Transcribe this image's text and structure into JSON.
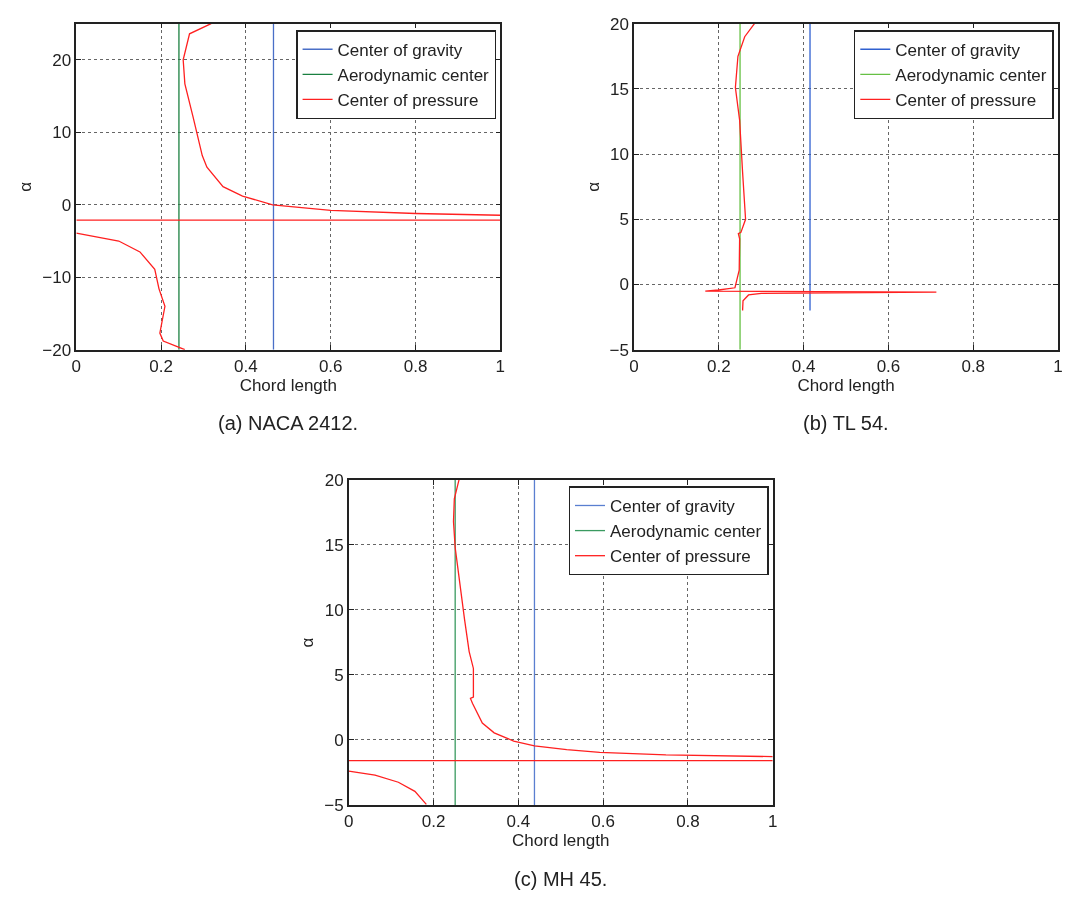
{
  "chart_data": [
    {
      "type": "line",
      "title": "(a) NACA 2412.",
      "xlabel": "Chord length",
      "ylabel": "α",
      "xlim": [
        0,
        1
      ],
      "ylim": [
        -20,
        25
      ],
      "xticks": [
        0,
        0.2,
        0.4,
        0.6,
        0.8,
        1
      ],
      "yticks": [
        -20,
        -10,
        0,
        10,
        20
      ],
      "grid": true,
      "legend": "top right",
      "series": [
        {
          "name": "Center of gravity",
          "color": "#4a6fc7",
          "x": [
            0.465,
            0.465
          ],
          "values": [
            -20,
            25
          ]
        },
        {
          "name": "Aerodynamic center",
          "color": "#1a8040",
          "x": [
            0.242,
            0.242
          ],
          "values": [
            -20,
            25
          ]
        },
        {
          "name": "Center of pressure",
          "color": "#ff2020",
          "x": [
            0.318,
            0.267,
            0.252,
            0.256,
            0.275,
            0.297,
            0.308,
            0.346,
            0.392,
            0.463,
            0.6,
            0.8,
            1,
            null,
            1,
            0,
            null,
            0,
            0.1,
            0.15,
            0.185,
            0.195,
            0.209,
            0.197,
            0.205,
            0.256
          ],
          "values": [
            25,
            23.6,
            20,
            16.7,
            12.2,
            6.8,
            5.2,
            2.5,
            1.2,
            0,
            -0.76,
            -1.2,
            -1.44,
            null,
            -2.1,
            -2.1,
            null,
            -3.9,
            -5.0,
            -6.5,
            -8.9,
            -11.6,
            -14,
            -17.7,
            -18.8,
            -20
          ]
        }
      ]
    },
    {
      "type": "line",
      "title": "(b) TL 54.",
      "xlabel": "Chord length",
      "ylabel": "α",
      "xlim": [
        0,
        1
      ],
      "ylim": [
        -5,
        20
      ],
      "xticks": [
        0,
        0.2,
        0.4,
        0.6,
        0.8,
        1
      ],
      "yticks": [
        -5,
        0,
        5,
        10,
        15,
        20
      ],
      "grid": true,
      "legend": "top right",
      "series": [
        {
          "name": "Center of gravity",
          "color": "#3060d0",
          "x": [
            0.415,
            0.415
          ],
          "values": [
            -2,
            20
          ]
        },
        {
          "name": "Aerodynamic center",
          "color": "#66c044",
          "x": [
            0.25,
            0.25
          ],
          "values": [
            -5,
            20
          ]
        },
        {
          "name": "Center of pressure",
          "color": "#ff2020",
          "x": [
            0.284,
            0.261,
            0.245,
            0.239,
            0.249,
            0.256,
            0.263,
            0.252,
            0.246,
            0.249,
            0.248,
            0.238,
            0.199,
            0.168,
            0.713,
            0.3,
            0.27,
            0.257,
            0.256
          ],
          "values": [
            20,
            19,
            17.5,
            15.1,
            12.6,
            8.6,
            5,
            4,
            3.9,
            3.5,
            1.1,
            -0.25,
            -0.42,
            -0.5,
            -0.58,
            -0.68,
            -0.8,
            -1.25,
            -2
          ]
        }
      ]
    },
    {
      "type": "line",
      "title": "(c) MH 45.",
      "xlabel": "Chord length",
      "ylabel": "α",
      "xlim": [
        0,
        1
      ],
      "ylim": [
        -5,
        20
      ],
      "xticks": [
        0,
        0.2,
        0.4,
        0.6,
        0.8,
        1
      ],
      "yticks": [
        -5,
        0,
        5,
        10,
        15,
        20
      ],
      "grid": true,
      "legend": "top right",
      "series": [
        {
          "name": "Center of gravity",
          "color": "#5a7fd0",
          "x": [
            0.438,
            0.438
          ],
          "values": [
            -5,
            20
          ]
        },
        {
          "name": "Aerodynamic center",
          "color": "#3a9a60",
          "x": [
            0.251,
            0.251
          ],
          "values": [
            -5,
            20
          ]
        },
        {
          "name": "Center of pressure",
          "color": "#ff2020",
          "x": [
            0.26,
            0.249,
            0.247,
            0.251,
            0.257,
            0.273,
            0.284,
            0.294,
            0.294,
            0.287,
            0.292,
            0.315,
            0.343,
            0.389,
            0.438,
            0.514,
            0.592,
            0.748,
            1,
            null,
            1,
            0,
            null,
            0,
            0.062,
            0.117,
            0.156,
            0.183
          ],
          "values": [
            20,
            18.55,
            16.8,
            14.8,
            13.3,
            9.3,
            6.8,
            5.5,
            3.3,
            3.2,
            2.8,
            1.3,
            0.55,
            -0.08,
            -0.45,
            -0.75,
            -0.95,
            -1.15,
            -1.28,
            null,
            -1.58,
            -1.58,
            null,
            -2.4,
            -2.7,
            -3.25,
            -3.95,
            -4.95
          ]
        }
      ]
    }
  ]
}
